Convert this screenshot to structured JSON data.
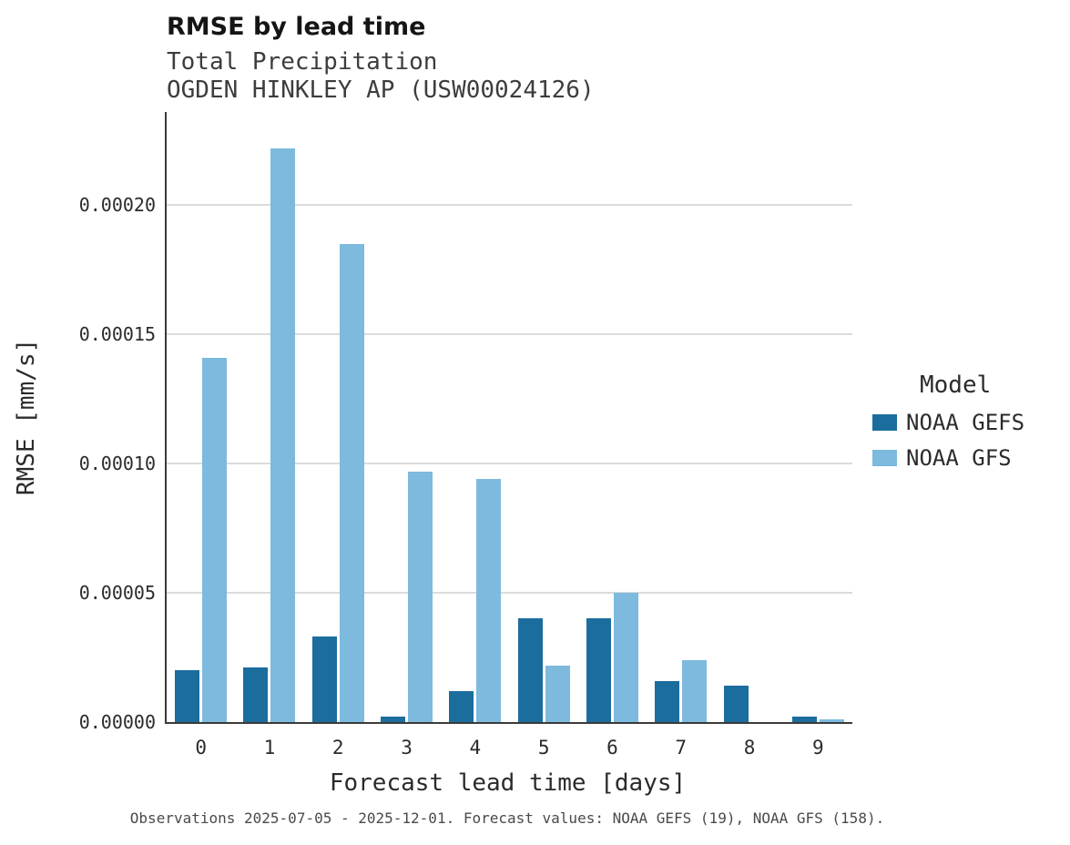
{
  "header": {
    "title": "RMSE by lead time",
    "subtitle_line1": "Total Precipitation",
    "subtitle_line2": "OGDEN HINKLEY AP (USW00024126)"
  },
  "footer": {
    "text": "Observations 2025-07-05 - 2025-12-01. Forecast values: NOAA GEFS (19), NOAA GFS (158)."
  },
  "colors": {
    "gefs_bar": "#1b6d9e",
    "gfs_bar": "#7dbade",
    "gridline": "#dcdcdc",
    "axis_spine": "#3a3a3a"
  },
  "chart_data": {
    "type": "bar",
    "title": "RMSE by lead time",
    "subtitle": "Total Precipitation — OGDEN HINKLEY AP (USW00024126)",
    "xlabel": "Forecast lead time [days]",
    "ylabel": "RMSE [mm/s]",
    "legend_title": "Model",
    "legend_position": "right",
    "grid": true,
    "categories": [
      "0",
      "1",
      "2",
      "3",
      "4",
      "5",
      "6",
      "7",
      "8",
      "9"
    ],
    "series": [
      {
        "name": "NOAA GEFS",
        "color": "#1b6d9e",
        "values": [
          2e-05,
          2.1e-05,
          3.3e-05,
          2e-06,
          1.2e-05,
          4e-05,
          4e-05,
          1.6e-05,
          1.4e-05,
          2e-06
        ]
      },
      {
        "name": "NOAA GFS",
        "color": "#7dbade",
        "values": [
          0.000141,
          0.000222,
          0.000185,
          9.7e-05,
          9.4e-05,
          2.2e-05,
          5e-05,
          2.4e-05,
          0.0,
          1e-06
        ]
      }
    ],
    "ylim": [
      0,
      0.000236
    ],
    "yticks": [
      0.0,
      5e-05,
      0.0001,
      0.00015,
      0.0002
    ],
    "ytick_labels": [
      "0.00000",
      "0.00005",
      "0.00010",
      "0.00015",
      "0.00020"
    ]
  }
}
